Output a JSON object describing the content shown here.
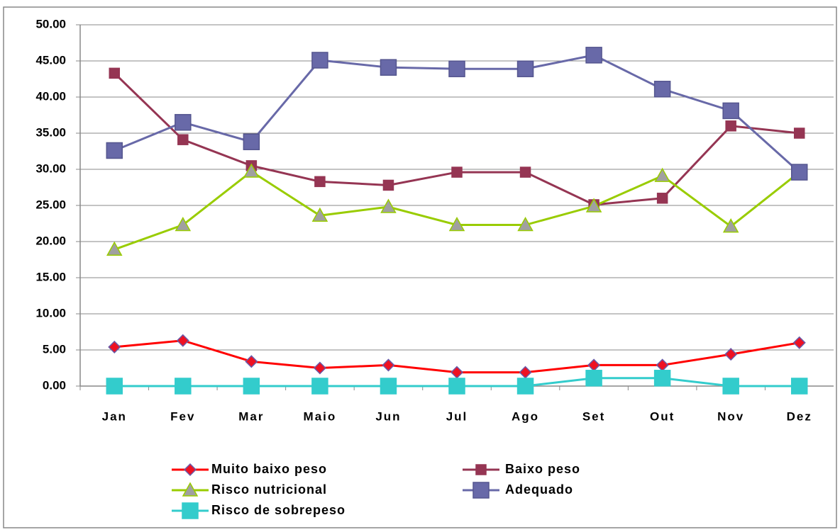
{
  "chart_data": {
    "type": "line",
    "categories": [
      "Jan",
      "Fev",
      "Mar",
      "Maio",
      "Jun",
      "Jul",
      "Ago",
      "Set",
      "Out",
      "Nov",
      "Dez"
    ],
    "ylim": [
      0,
      50
    ],
    "yticks": [
      {
        "value": 0,
        "label": "0.00"
      },
      {
        "value": 5,
        "label": "5.00"
      },
      {
        "value": 10,
        "label": "10.00"
      },
      {
        "value": 15,
        "label": "15.00"
      },
      {
        "value": 20,
        "label": "20.00"
      },
      {
        "value": 25,
        "label": "25.00"
      },
      {
        "value": 30,
        "label": "30.00"
      },
      {
        "value": 35,
        "label": "35.00"
      },
      {
        "value": 40,
        "label": "40.00"
      },
      {
        "value": 45,
        "label": "45.00"
      },
      {
        "value": 50,
        "label": "50.00"
      }
    ],
    "grid": true,
    "legend": "bottom",
    "series": [
      {
        "name": "Muito baixo peso",
        "color": "#ff0000",
        "marker": "diamond",
        "marker_color": "#ee1122",
        "marker_edge": "#6a5aa8",
        "values": [
          5.4,
          6.3,
          3.4,
          2.5,
          2.9,
          1.9,
          1.9,
          2.9,
          2.9,
          4.4,
          6.0
        ]
      },
      {
        "name": "Baixo peso",
        "color": "#953553",
        "marker": "square",
        "marker_color": "#953553",
        "marker_edge": "#953553",
        "values": [
          43.3,
          34.1,
          30.5,
          28.3,
          27.8,
          29.6,
          29.6,
          25.1,
          26.0,
          36.0,
          35.0
        ]
      },
      {
        "name": "Risco nutricional",
        "color": "#99cc00",
        "marker": "triangle",
        "marker_color": "#a0a0a0",
        "marker_edge": "#99cc00",
        "values": [
          18.9,
          22.3,
          29.7,
          23.6,
          24.8,
          22.3,
          22.3,
          24.9,
          29.1,
          22.1,
          29.6
        ]
      },
      {
        "name": "Adequado",
        "color": "#6869a8",
        "marker": "bigsquare",
        "marker_color": "#6869a8",
        "marker_edge": "#55568f",
        "values": [
          32.6,
          36.5,
          33.8,
          45.1,
          44.1,
          43.9,
          43.9,
          45.8,
          41.1,
          38.1,
          29.6
        ]
      },
      {
        "name": "Risco de sobrepeso",
        "color": "#33cccc",
        "marker": "bigsquare",
        "marker_color": "#33cccc",
        "marker_edge": "#33cccc",
        "values": [
          0,
          0,
          0,
          0,
          0,
          0,
          0,
          1.1,
          1.1,
          0,
          0
        ]
      }
    ]
  }
}
